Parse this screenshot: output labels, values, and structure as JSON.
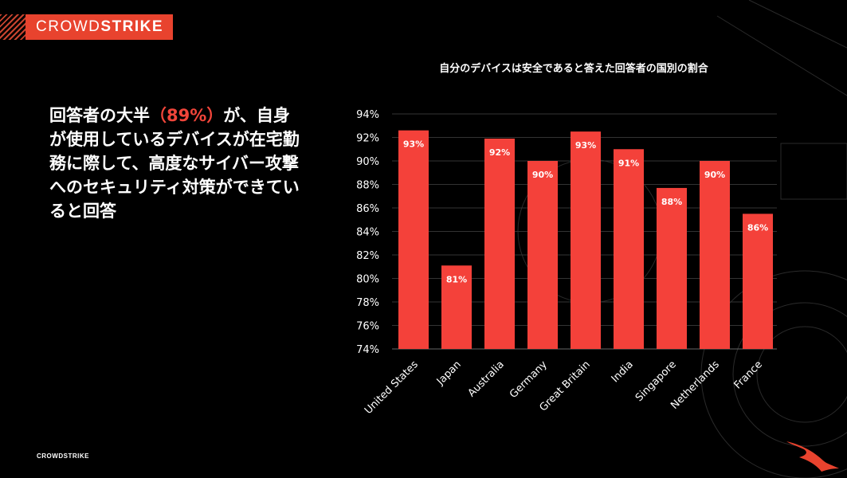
{
  "logo": {
    "text_light": "CROWD",
    "text_bold": "STRIKE"
  },
  "headline": {
    "before": "回答者の大半",
    "highlight": "（89%）",
    "after": "が、自身が使用しているデバイスが在宅勤務に際して、高度なサイバー攻撃へのセキュリティ対策ができていると回答"
  },
  "footer": {
    "logo_text": "CROWDSTRIKE"
  },
  "colors": {
    "bar": "#f4413a",
    "accent": "#e8432e"
  },
  "chart_data": {
    "type": "bar",
    "title": "自分のデバイスは安全であると答えた回答者の国別の割合",
    "categories": [
      "United States",
      "Japan",
      "Australia",
      "Germany",
      "Great Britain",
      "India",
      "Singapore",
      "Netherlands",
      "France"
    ],
    "values": [
      92.6,
      81.1,
      91.9,
      90.0,
      92.5,
      91.0,
      87.7,
      90.0,
      85.5
    ],
    "data_labels": [
      "93%",
      "81%",
      "92%",
      "90%",
      "93%",
      "91%",
      "88%",
      "90%",
      "86%"
    ],
    "ylim": [
      74,
      94
    ],
    "yticks": [
      "74%",
      "76%",
      "78%",
      "80%",
      "82%",
      "84%",
      "86%",
      "88%",
      "90%",
      "92%",
      "94%"
    ],
    "grid": true,
    "xlabel": "",
    "ylabel": ""
  }
}
